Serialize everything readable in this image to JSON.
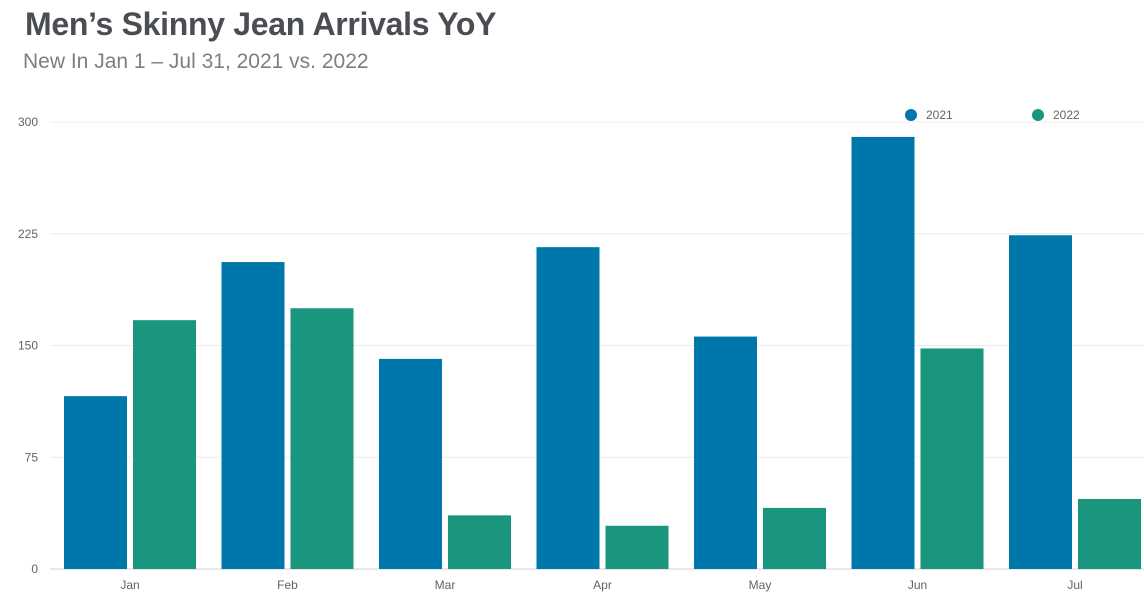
{
  "header": {
    "title": "Men’s Skinny Jean Arrivals YoY",
    "subtitle": "New In Jan 1 – Jul 31, 2021 vs. 2022"
  },
  "chart_data": {
    "type": "bar",
    "title": "Men’s Skinny Jean Arrivals YoY",
    "subtitle": "New In Jan 1 – Jul 31, 2021 vs. 2022",
    "xlabel": "",
    "ylabel": "",
    "categories": [
      "Jan",
      "Feb",
      "Mar",
      "Apr",
      "May",
      "Jun",
      "Jul"
    ],
    "series": [
      {
        "name": "2021",
        "color": "#0077aa",
        "values": [
          116,
          206,
          141,
          216,
          156,
          290,
          224
        ]
      },
      {
        "name": "2022",
        "color": "#1a967e",
        "values": [
          167,
          175,
          36,
          29,
          41,
          148,
          47
        ]
      }
    ],
    "ylim": [
      0,
      300
    ],
    "yticks": [
      0,
      75,
      150,
      225,
      300
    ],
    "grid": true,
    "legend": "top-right"
  }
}
